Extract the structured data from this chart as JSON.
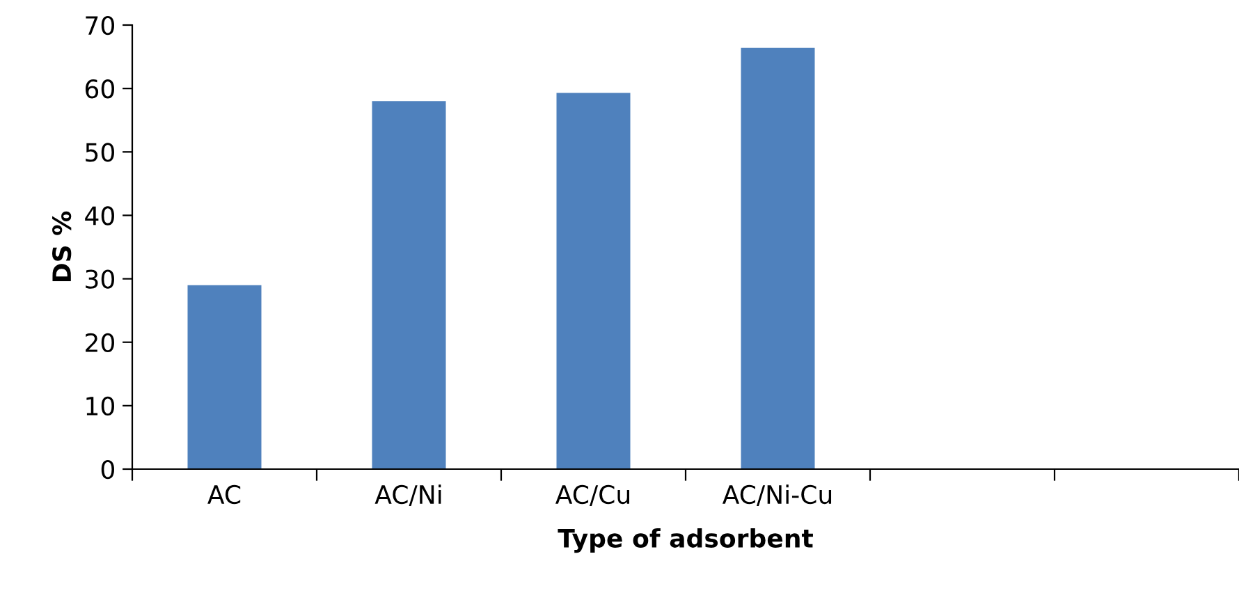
{
  "chart_data": {
    "type": "bar",
    "xlabel": "Type of adsorbent",
    "ylabel": "DS %",
    "categories": [
      "AC",
      "AC/Ni",
      "AC/Cu",
      "AC/Ni-Cu",
      null,
      null
    ],
    "values": [
      29,
      58,
      59.3,
      66.4,
      null,
      null
    ],
    "color": "#4f81bd",
    "ylim": [
      0,
      70
    ],
    "yticks": [
      0,
      10,
      20,
      30,
      40,
      50,
      60,
      70
    ],
    "grid": false,
    "legend": false
  }
}
